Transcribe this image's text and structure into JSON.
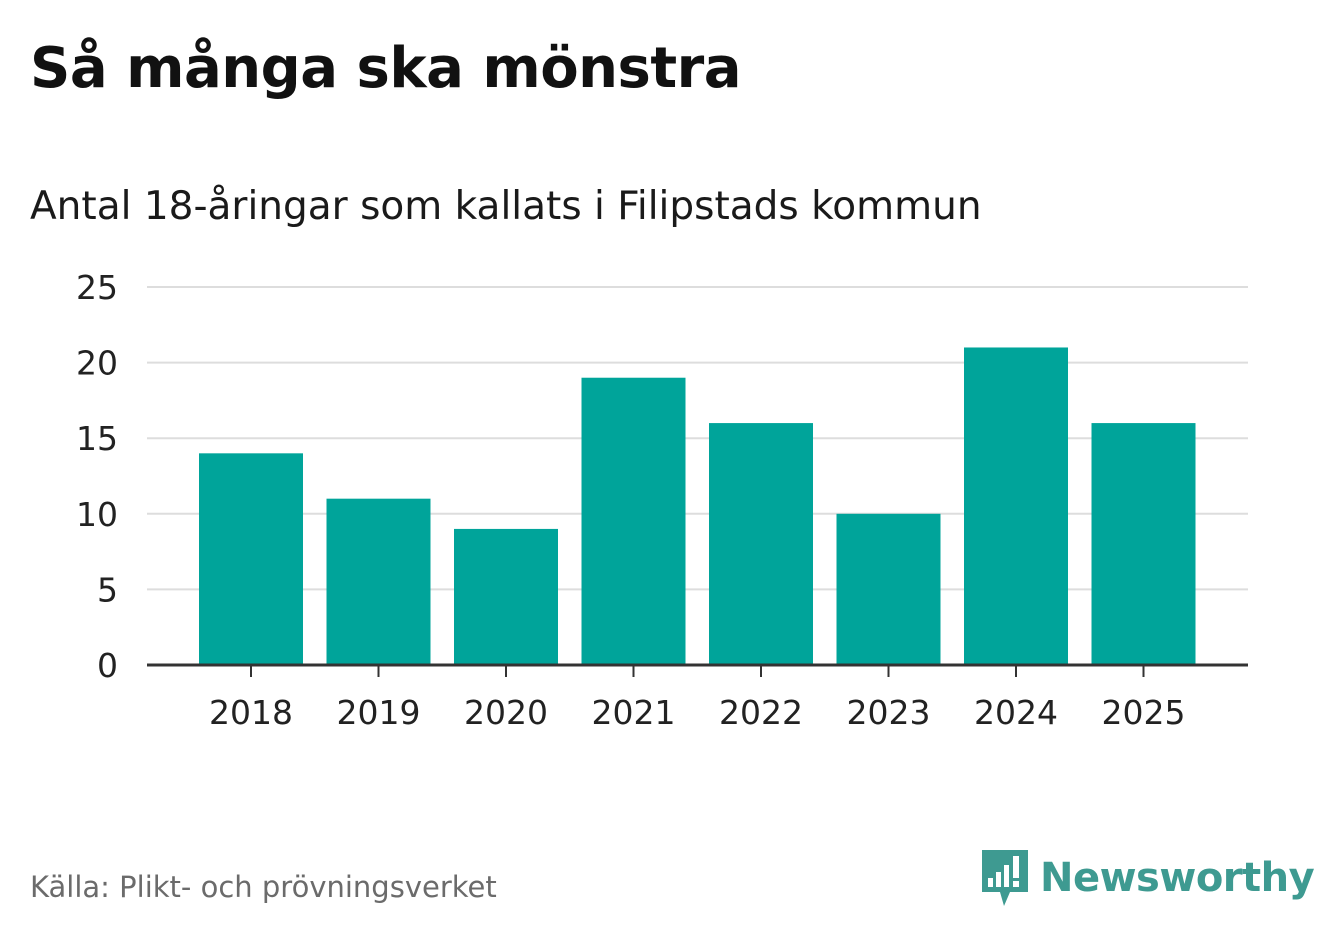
{
  "title": "Så många ska mönstra",
  "subtitle": "Antal 18-åringar som kallats i Filipstads kommun",
  "source": "Källa: Plikt- och prövningsverket",
  "brand": {
    "name": "Newsworthy",
    "icon": "newsworthy-logo-icon",
    "color": "#3e9a91"
  },
  "colors": {
    "bar": "#00a49a",
    "grid": "#dddddd",
    "axis": "#333333"
  },
  "chart_data": {
    "type": "bar",
    "title": "Så många ska mönstra",
    "subtitle": "Antal 18-åringar som kallats i Filipstads kommun",
    "xlabel": "",
    "ylabel": "",
    "categories": [
      "2018",
      "2019",
      "2020",
      "2021",
      "2022",
      "2023",
      "2024",
      "2025"
    ],
    "values": [
      14,
      11,
      9,
      19,
      16,
      10,
      21,
      16
    ],
    "ylim": [
      0,
      25
    ],
    "yticks": [
      0,
      5,
      10,
      15,
      20,
      25
    ],
    "grid": true,
    "legend": "none"
  }
}
